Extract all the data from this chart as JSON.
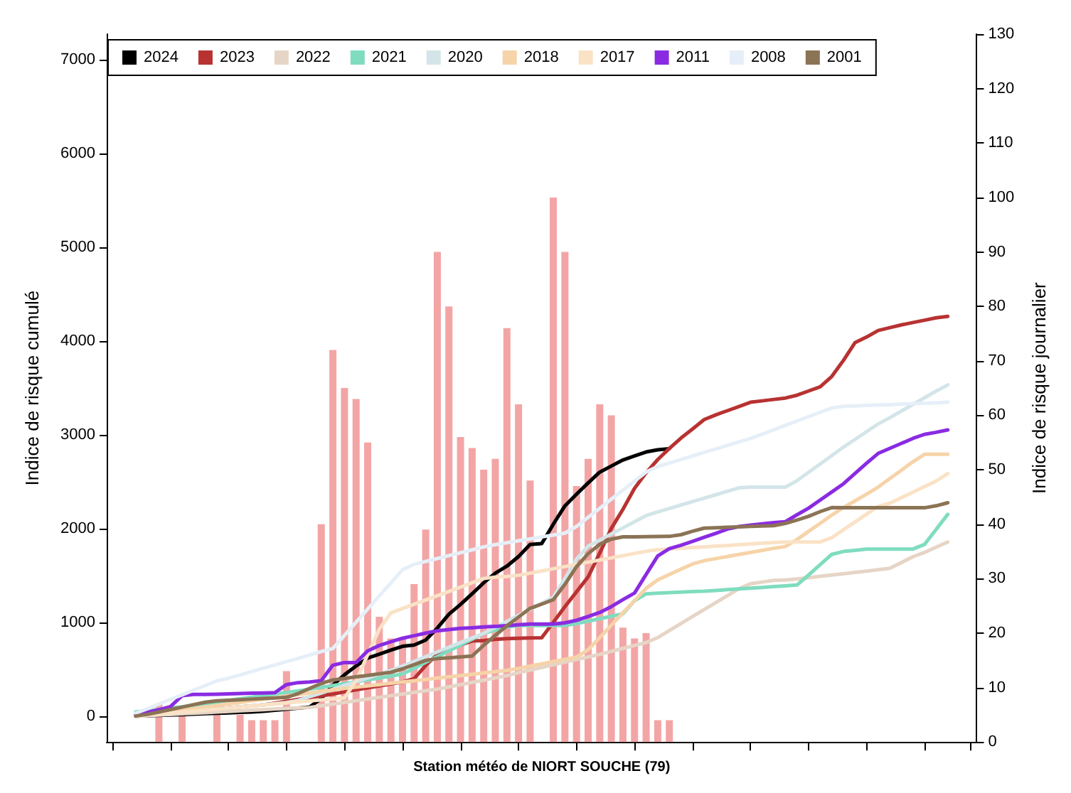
{
  "chart_data": {
    "type": "line",
    "xlabel": "Station météo de NIORT SOUCHE (79)",
    "ylabel": "Indice de risque cumulé",
    "y2label": "Indice de risque journalier",
    "legend": "top left",
    "categories": [
      null,
      null,
      null,
      null,
      null,
      null,
      null,
      null,
      null,
      null,
      null,
      null,
      null,
      null,
      null,
      null,
      null,
      null,
      null,
      null,
      null,
      null,
      null,
      null,
      null,
      null,
      null,
      null,
      null,
      null,
      null,
      null,
      null,
      null,
      null,
      null,
      null,
      null,
      null,
      null,
      null,
      null,
      null,
      null,
      null,
      null,
      null,
      null,
      null,
      null,
      null,
      null,
      null,
      null,
      null,
      null,
      null,
      null,
      null,
      null,
      null,
      null,
      null,
      null,
      null,
      null,
      null,
      null,
      null,
      null,
      null,
      null,
      null,
      null,
      null
    ],
    "ylim": [
      -277,
      7270
    ],
    "yticks": [
      0,
      1000,
      2000,
      3000,
      4000,
      5000,
      6000,
      7000
    ],
    "y2lim": [
      0,
      130
    ],
    "y2ticks": [
      0,
      10,
      20,
      30,
      40,
      50,
      60,
      70,
      80,
      90,
      100,
      110,
      120,
      130
    ],
    "series": [
      {
        "type": "bar",
        "axis": "y2",
        "color": "#f3a5a5",
        "values": [
          null,
          null,
          null,
          null,
          7,
          null,
          5,
          null,
          null,
          7,
          null,
          5,
          4,
          4,
          4,
          13,
          null,
          null,
          40,
          72,
          65,
          63,
          55,
          23,
          19,
          19,
          29,
          39,
          90,
          80,
          56,
          54,
          50,
          52,
          76,
          62,
          48,
          null,
          100,
          90,
          47,
          52,
          62,
          60,
          21,
          19,
          20,
          4,
          4,
          null,
          null,
          null,
          null,
          null,
          null,
          null,
          null,
          null,
          null,
          null,
          null,
          null,
          null,
          null,
          null,
          null,
          null,
          null,
          null,
          null,
          null,
          null,
          null,
          null,
          null
        ]
      },
      {
        "name": "2024",
        "color": "#000000",
        "values": [
          null,
          null,
          0,
          3,
          7,
          10,
          14,
          20,
          25,
          29,
          33,
          38,
          42,
          51,
          62,
          73,
          85,
          96,
          187,
          330,
          440,
          533,
          618,
          660,
          703,
          743,
          757,
          810,
          937,
          1085,
          1190,
          1303,
          1420,
          1523,
          1598,
          1700,
          1828,
          1838,
          2045,
          2240,
          2365,
          2485,
          2600,
          2665,
          2730,
          2772,
          2815,
          2838,
          2850,
          null,
          null,
          null,
          null,
          null,
          null,
          null,
          null,
          null,
          null,
          null,
          null,
          null,
          null,
          null,
          null,
          null,
          null,
          null,
          null,
          null,
          null,
          null,
          null,
          null,
          null
        ]
      },
      {
        "name": "2023",
        "color": "#b83232",
        "values": [
          null,
          null,
          0,
          7,
          19,
          31,
          42,
          53,
          64,
          75,
          86,
          97,
          108,
          119,
          138,
          157,
          177,
          196,
          215,
          234,
          258,
          279,
          300,
          321,
          342,
          363,
          398,
          539,
          657,
          714,
          758,
          800,
          804,
          817,
          824,
          829,
          832,
          835,
          1000,
          1165,
          1324,
          1483,
          1737,
          2000,
          2204,
          2427,
          2593,
          2734,
          2852,
          2963,
          3060,
          3160,
          3210,
          3255,
          3300,
          3345,
          3360,
          3375,
          3390,
          3420,
          3465,
          3510,
          3620,
          3790,
          3980,
          4040,
          4110,
          4140,
          4170,
          4195,
          4220,
          4245,
          4260,
          null,
          null
        ]
      },
      {
        "name": "2022",
        "color": "#e6d5c6",
        "values": [
          null,
          null,
          0,
          4,
          10,
          17,
          23,
          30,
          36,
          42,
          48,
          55,
          61,
          68,
          74,
          80,
          86,
          91,
          109,
          127,
          145,
          163,
          181,
          199,
          216,
          234,
          252,
          270,
          287,
          310,
          334,
          358,
          382,
          406,
          430,
          462,
          490,
          518,
          546,
          574,
          602,
          630,
          657,
          690,
          721,
          752,
          783,
          836,
          911,
          985,
          1060,
          1134,
          1209,
          1282,
          1356,
          1410,
          1428,
          1446,
          1450,
          1461,
          1475,
          1489,
          1503,
          1517,
          1531,
          1545,
          1559,
          1575,
          1636,
          1698,
          1744,
          1800,
          1855,
          null,
          null
        ]
      },
      {
        "name": "2021",
        "color": "#7fdcbf",
        "values": [
          null,
          null,
          45,
          55,
          70,
          86,
          98,
          115,
          132,
          149,
          166,
          183,
          200,
          218,
          235,
          252,
          269,
          286,
          305,
          325,
          345,
          365,
          385,
          405,
          425,
          448,
          509,
          572,
          633,
          695,
          757,
          819,
          881,
          917,
          949,
          965,
          965,
          965,
          965,
          965,
          985,
          1011,
          1037,
          1064,
          1089,
          1230,
          1303,
          1309,
          1315,
          1321,
          1326,
          1331,
          1339,
          1347,
          1355,
          1363,
          1371,
          1379,
          1387,
          1396,
          1503,
          1613,
          1723,
          1754,
          1766,
          1779,
          1780,
          1780,
          1780,
          1780,
          1830,
          1990,
          2150,
          null,
          null
        ]
      },
      {
        "name": "2020",
        "color": "#d3e5e9",
        "values": [
          null,
          null,
          0,
          8,
          19,
          30,
          42,
          53,
          64,
          75,
          87,
          98,
          110,
          121,
          132,
          143,
          166,
          206,
          245,
          285,
          325,
          365,
          405,
          445,
          486,
          533,
          582,
          633,
          683,
          733,
          782,
          832,
          882,
          945,
          1009,
          1074,
          1138,
          1202,
          1267,
          1464,
          1672,
          1811,
          1875,
          1941,
          2006,
          2071,
          2137,
          2176,
          2212,
          2249,
          2286,
          2322,
          2359,
          2396,
          2432,
          2440,
          2440,
          2440,
          2440,
          2508,
          2597,
          2687,
          2776,
          2866,
          2948,
          3031,
          3114,
          3180,
          3251,
          3322,
          3393,
          3464,
          3530,
          null,
          null
        ]
      },
      {
        "name": "2018",
        "color": "#f6d3a8",
        "values": [
          null,
          null,
          0,
          11,
          27,
          45,
          62,
          79,
          95,
          112,
          129,
          145,
          162,
          179,
          195,
          212,
          229,
          245,
          262,
          279,
          295,
          308,
          321,
          335,
          349,
          363,
          376,
          390,
          404,
          418,
          431,
          445,
          459,
          473,
          486,
          507,
          531,
          556,
          580,
          604,
          629,
          706,
          836,
          968,
          1099,
          1231,
          1362,
          1451,
          1509,
          1565,
          1621,
          1656,
          1678,
          1700,
          1722,
          1744,
          1766,
          1788,
          1807,
          1881,
          1968,
          2054,
          2141,
          2222,
          2293,
          2366,
          2440,
          2531,
          2621,
          2711,
          2790,
          2790,
          2790,
          null,
          null
        ]
      },
      {
        "name": "2017",
        "color": "#fae2c6",
        "values": [
          null,
          null,
          0,
          7,
          18,
          29,
          40,
          51,
          62,
          73,
          84,
          95,
          106,
          117,
          128,
          139,
          150,
          161,
          172,
          182,
          193,
          377,
          652,
          926,
          1100,
          1146,
          1191,
          1237,
          1282,
          1328,
          1374,
          1420,
          1466,
          1480,
          1487,
          1500,
          1523,
          1546,
          1570,
          1593,
          1616,
          1640,
          1663,
          1686,
          1709,
          1733,
          1756,
          1773,
          1780,
          1788,
          1796,
          1803,
          1811,
          1818,
          1826,
          1834,
          1842,
          1849,
          1855,
          1855,
          1855,
          1855,
          1901,
          1985,
          2068,
          2152,
          2235,
          2268,
          2327,
          2387,
          2446,
          2505,
          2585,
          null,
          null
        ]
      },
      {
        "name": "2011",
        "color": "#8a2be2",
        "values": [
          null,
          null,
          15,
          40,
          67,
          100,
          216,
          230,
          230,
          233,
          236,
          240,
          243,
          246,
          249,
          335,
          356,
          363,
          377,
          542,
          570,
          570,
          695,
          752,
          791,
          829,
          856,
          884,
          909,
          922,
          934,
          941,
          949,
          956,
          964,
          972,
          980,
          980,
          980,
          994,
          1020,
          1060,
          1104,
          1166,
          1240,
          1311,
          1510,
          1706,
          1784,
          1820,
          1862,
          1905,
          1947,
          1993,
          2020,
          2035,
          2049,
          2062,
          2071,
          2145,
          2216,
          2302,
          2388,
          2475,
          2585,
          2695,
          2800,
          2853,
          2906,
          2960,
          3003,
          3025,
          3050,
          null,
          null
        ]
      },
      {
        "name": "2008",
        "color": "#e6eff8",
        "values": [
          null,
          null,
          30,
          77,
          127,
          177,
          226,
          276,
          325,
          375,
          403,
          438,
          474,
          509,
          544,
          579,
          614,
          649,
          688,
          720,
          860,
          1000,
          1140,
          1280,
          1419,
          1560,
          1617,
          1648,
          1679,
          1710,
          1741,
          1772,
          1803,
          1827,
          1847,
          1868,
          1888,
          1909,
          1929,
          1950,
          2021,
          2118,
          2214,
          2311,
          2408,
          2504,
          2601,
          2660,
          2697,
          2735,
          2772,
          2810,
          2847,
          2884,
          2922,
          2958,
          3005,
          3051,
          3098,
          3145,
          3191,
          3238,
          3284,
          3302,
          3306,
          3311,
          3316,
          3320,
          3325,
          3330,
          3335,
          3339,
          3345,
          null,
          null
        ]
      },
      {
        "name": "2001",
        "color": "#8b7355",
        "values": [
          null,
          null,
          0,
          17,
          43,
          69,
          95,
          121,
          147,
          162,
          168,
          174,
          180,
          187,
          193,
          199,
          239,
          294,
          348,
          384,
          400,
          417,
          433,
          450,
          466,
          503,
          547,
          593,
          612,
          621,
          630,
          639,
          755,
          860,
          961,
          1055,
          1148,
          1193,
          1240,
          1404,
          1592,
          1731,
          1831,
          1885,
          1910,
          1910,
          1912,
          1913,
          1915,
          1933,
          1970,
          2003,
          2007,
          2012,
          2016,
          2021,
          2026,
          2030,
          2054,
          2089,
          2129,
          2179,
          2222,
          2220,
          2220,
          2220,
          2220,
          2220,
          2220,
          2220,
          2220,
          2241,
          2274,
          null,
          null
        ]
      }
    ]
  }
}
